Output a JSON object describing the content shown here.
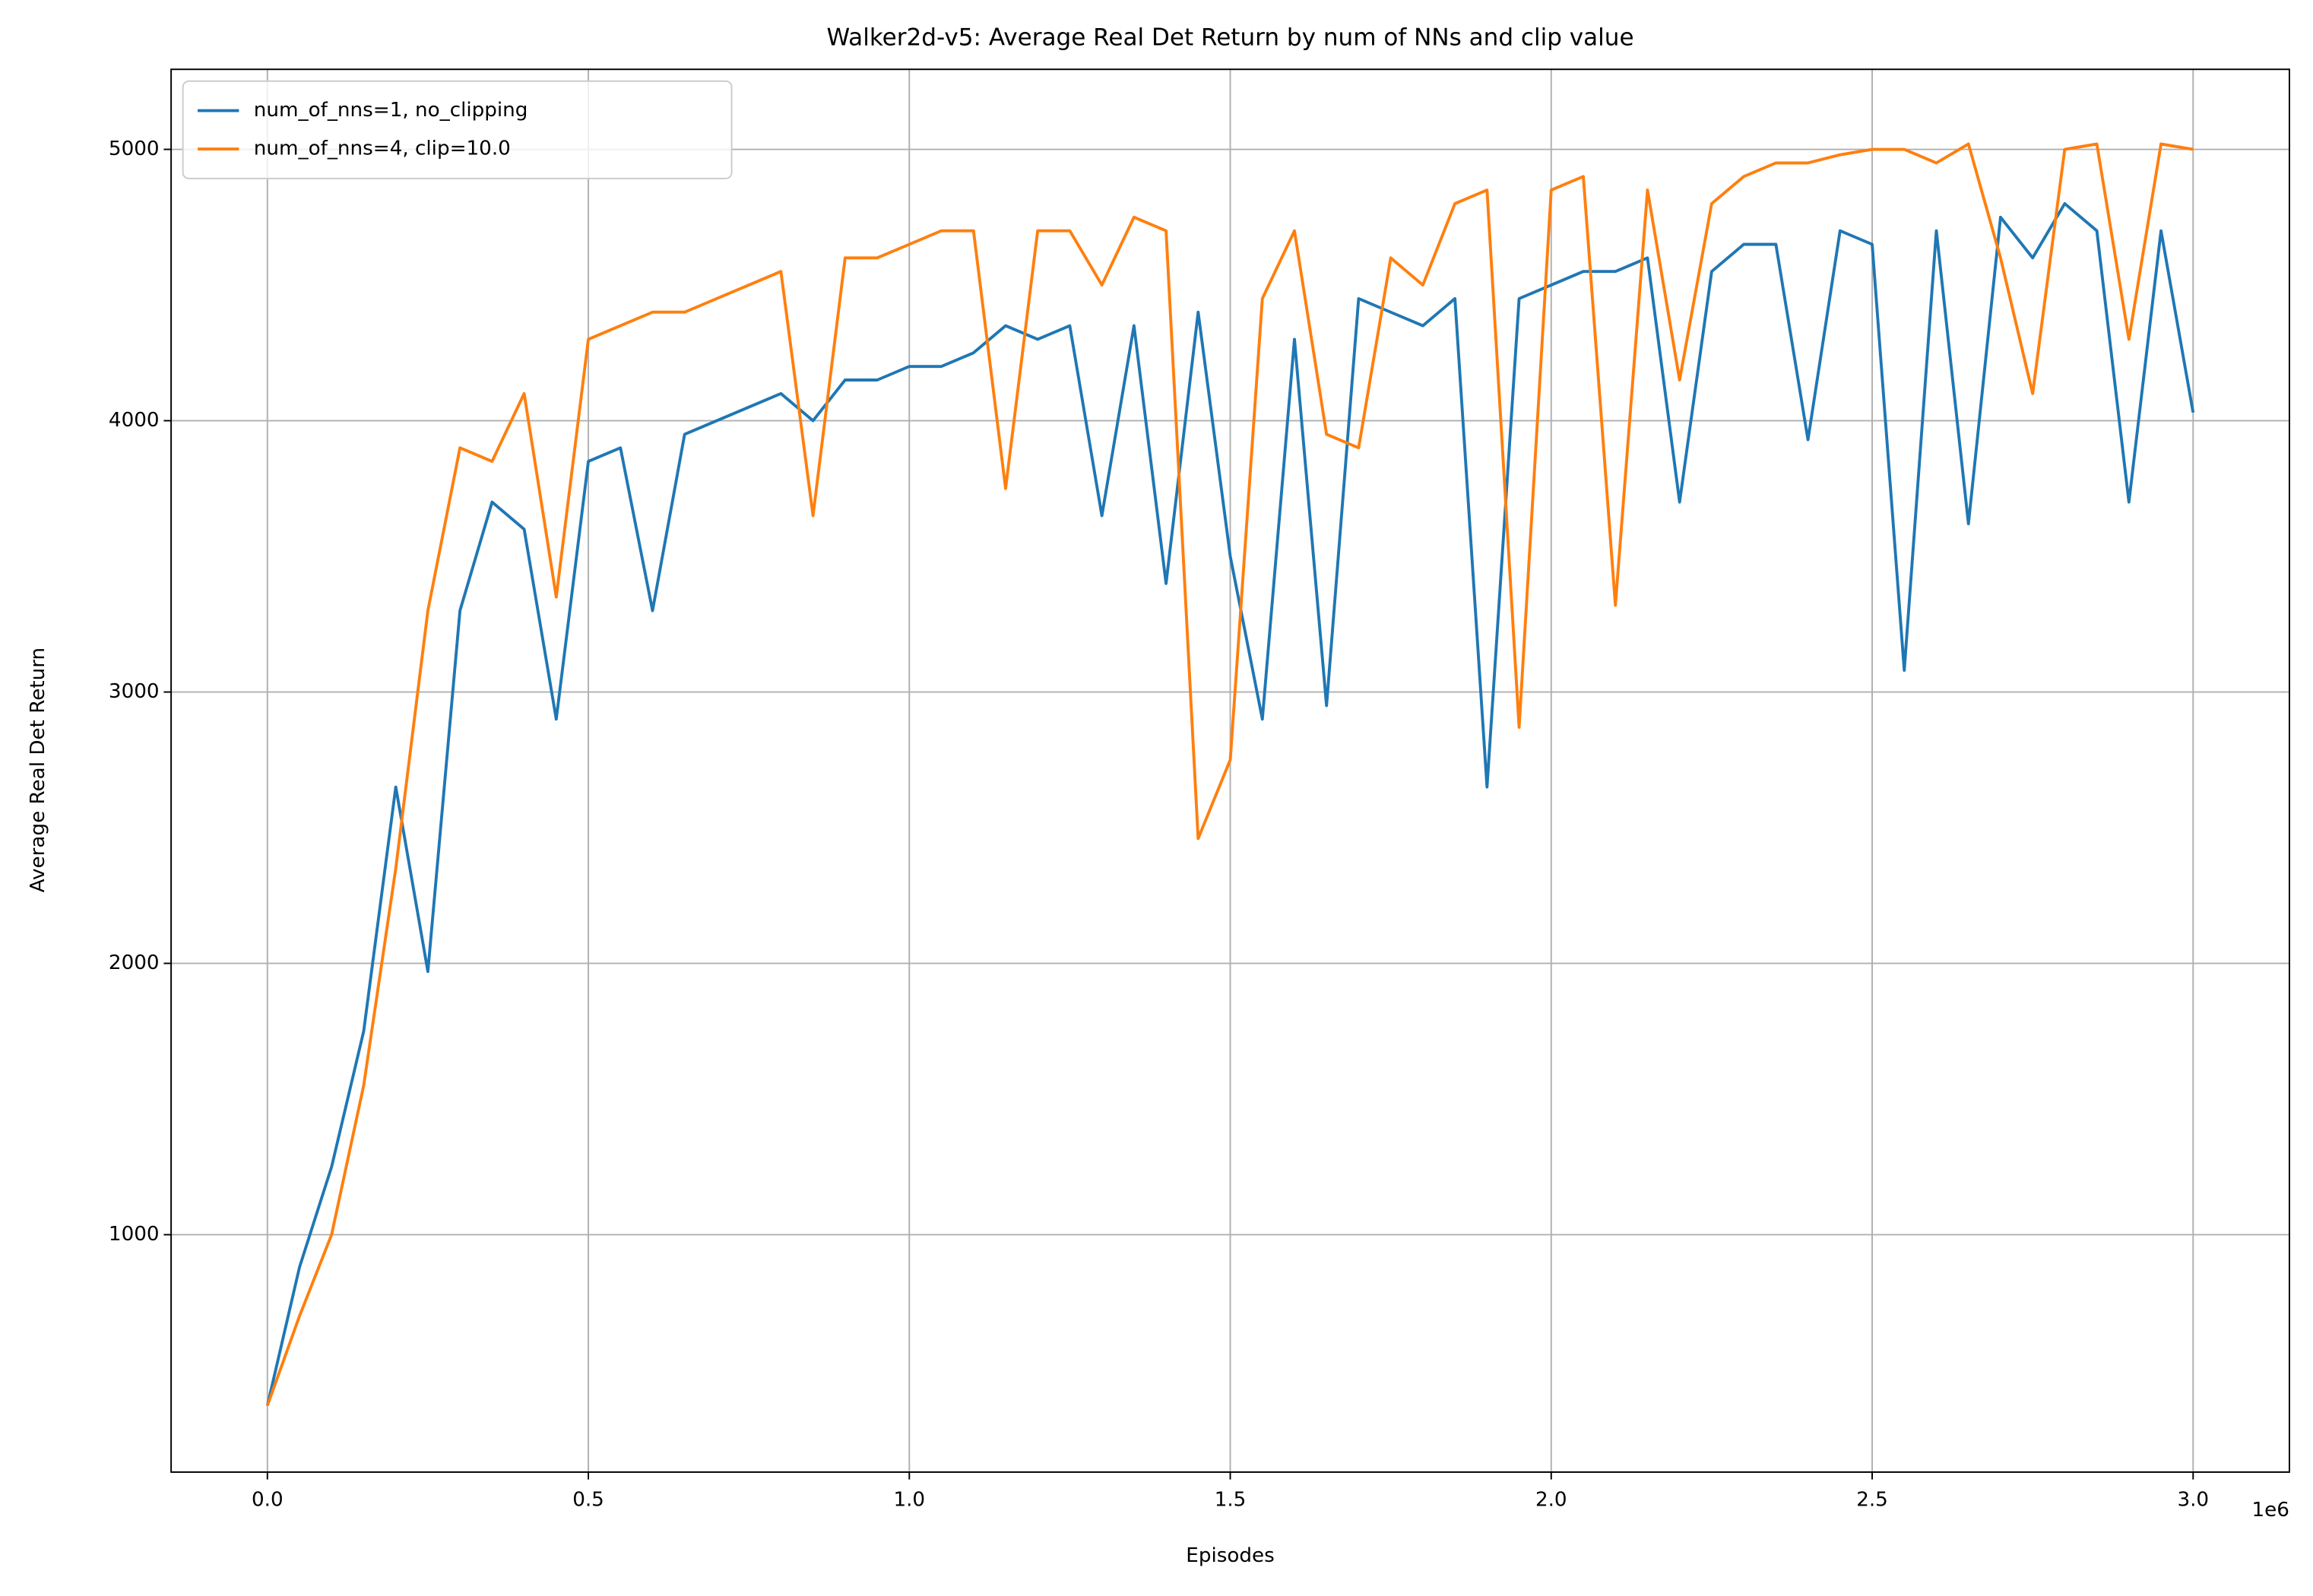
{
  "chart_data": {
    "type": "line",
    "title": "Walker2d-v5: Average Real Det Return by num of NNs and clip value",
    "x_label": "Episodes",
    "y_label": "Average Real Det Return",
    "x_offset_label": "1e6",
    "x": [
      0,
      50000,
      100000,
      150000,
      200000,
      250000,
      300000,
      350000,
      400000,
      450000,
      500000,
      550000,
      600000,
      650000,
      700000,
      750000,
      800000,
      850000,
      900000,
      950000,
      1000000,
      1050000,
      1100000,
      1150000,
      1200000,
      1250000,
      1300000,
      1350000,
      1400000,
      1450000,
      1500000,
      1550000,
      1600000,
      1650000,
      1700000,
      1750000,
      1800000,
      1850000,
      1900000,
      1950000,
      2000000,
      2050000,
      2100000,
      2150000,
      2200000,
      2250000,
      2300000,
      2350000,
      2400000,
      2450000,
      2500000,
      2550000,
      2600000,
      2650000,
      2700000,
      2750000,
      2800000,
      2850000,
      2900000,
      2950000,
      3000000
    ],
    "series": [
      {
        "name": "num_of_nns=1, no_clipping",
        "color": "#1f77b4",
        "values": [
          370,
          880,
          1250,
          1750,
          2650,
          1970,
          3300,
          3700,
          3600,
          2900,
          3850,
          3900,
          3300,
          3950,
          4000,
          4050,
          4100,
          4000,
          4150,
          4150,
          4200,
          4200,
          4250,
          4350,
          4300,
          4350,
          3650,
          4350,
          3400,
          4400,
          3500,
          2900,
          4300,
          2950,
          4450,
          4400,
          4350,
          4450,
          2650,
          4450,
          4500,
          4550,
          4550,
          4600,
          3700,
          4550,
          4650,
          4650,
          3930,
          4700,
          4650,
          3080,
          4700,
          3620,
          4750,
          4600,
          4800,
          4700,
          3700,
          4700,
          4030
        ]
      },
      {
        "name": "num_of_nns=4, clip=10.0",
        "color": "#ff7f0e",
        "values": [
          370,
          700,
          1000,
          1550,
          2350,
          3300,
          3900,
          3850,
          4100,
          3350,
          4300,
          4350,
          4400,
          4400,
          4450,
          4500,
          4550,
          3650,
          4600,
          4600,
          4650,
          4700,
          4700,
          3750,
          4700,
          4700,
          4500,
          4750,
          4700,
          2460,
          2750,
          4450,
          4700,
          3950,
          3900,
          4600,
          4500,
          4800,
          4850,
          2870,
          4850,
          4900,
          3320,
          4850,
          4150,
          4800,
          4900,
          4950,
          4950,
          4980,
          5000,
          5000,
          4950,
          5020,
          4600,
          4100,
          5000,
          5020,
          4300,
          5020,
          5000
        ]
      }
    ],
    "xlim": [
      -150000,
      3150000
    ],
    "xticks": [
      {
        "value": 0,
        "label": "0.0"
      },
      {
        "value": 500000,
        "label": "0.5"
      },
      {
        "value": 1000000,
        "label": "1.0"
      },
      {
        "value": 1500000,
        "label": "1.5"
      },
      {
        "value": 2000000,
        "label": "2.0"
      },
      {
        "value": 2500000,
        "label": "2.5"
      },
      {
        "value": 3000000,
        "label": "3.0"
      }
    ],
    "ylim": [
      125,
      5295
    ],
    "yticks": [
      1000,
      2000,
      3000,
      4000,
      5000
    ],
    "grid": true,
    "legend": "upper left"
  }
}
